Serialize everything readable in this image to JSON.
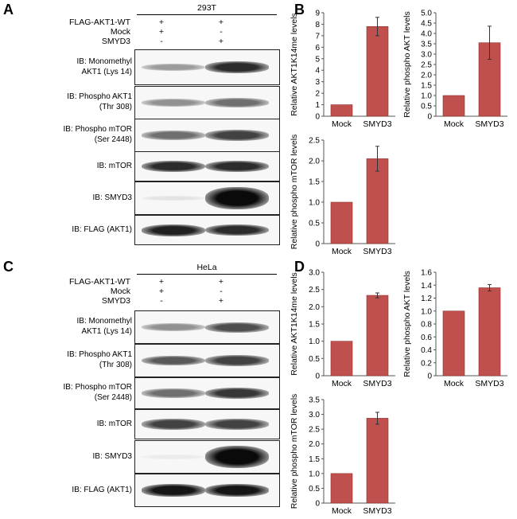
{
  "figure": {
    "panels": {
      "A": {
        "letter": "A",
        "cell_line": "293T",
        "conditions": [
          {
            "label": "FLAG-AKT1-WT",
            "lane1": "+",
            "lane2": "+"
          },
          {
            "label": "Mock",
            "lane1": "+",
            "lane2": "-"
          },
          {
            "label": "SMYD3",
            "lane1": "-",
            "lane2": "+"
          }
        ],
        "blots": [
          {
            "lines": [
              "IB: Monomethyl",
              "AKT1 (Lys 14)"
            ],
            "intensity": [
              0.35,
              0.85
            ]
          },
          {
            "lines": [
              "IB: Phospho AKT1",
              "(Thr 308)"
            ],
            "intensity": [
              0.4,
              0.55
            ]
          },
          {
            "lines": [
              "IB: Phospho mTOR",
              "(Ser 2448)"
            ],
            "intensity": [
              0.55,
              0.75
            ]
          },
          {
            "lines": [
              "IB: mTOR"
            ],
            "intensity": [
              0.85,
              0.85
            ]
          },
          {
            "lines": [
              "IB: SMYD3"
            ],
            "intensity": [
              0.03,
              1.0
            ]
          },
          {
            "lines": [
              "IB: FLAG (AKT1)"
            ],
            "intensity": [
              0.9,
              0.85
            ]
          }
        ]
      },
      "C": {
        "letter": "C",
        "cell_line": "HeLa",
        "conditions": [
          {
            "label": "FLAG-AKT1-WT",
            "lane1": "+",
            "lane2": "+"
          },
          {
            "label": "Mock",
            "lane1": "+",
            "lane2": "-"
          },
          {
            "label": "SMYD3",
            "lane1": "-",
            "lane2": "+"
          }
        ],
        "blots": [
          {
            "lines": [
              "IB: Monomethyl",
              "AKT1 (Lys 14)"
            ],
            "intensity": [
              0.4,
              0.7
            ]
          },
          {
            "lines": [
              "IB: Phospho AKT1",
              "(Thr 308)"
            ],
            "intensity": [
              0.65,
              0.75
            ]
          },
          {
            "lines": [
              "IB: Phospho mTOR",
              "(Ser 2448)"
            ],
            "intensity": [
              0.55,
              0.8
            ]
          },
          {
            "lines": [
              "IB: mTOR"
            ],
            "intensity": [
              0.75,
              0.75
            ]
          },
          {
            "lines": [
              "IB: SMYD3"
            ],
            "intensity": [
              0.0,
              1.0
            ]
          },
          {
            "lines": [
              "IB: FLAG (AKT1)"
            ],
            "intensity": [
              0.95,
              0.95
            ]
          }
        ]
      },
      "B": {
        "letter": "B"
      },
      "D": {
        "letter": "D"
      }
    },
    "bar_color": "#c0504d"
  },
  "chart_data": [
    {
      "panel": "B",
      "type": "bar",
      "categories": [
        "Mock",
        "SMYD3"
      ],
      "values": [
        1,
        7.8
      ],
      "errors": [
        0,
        0.8
      ],
      "ylabel": "Relative AKT1K14me levels",
      "ylim": [
        0,
        9
      ],
      "yticks": [
        "0",
        "1",
        "2",
        "3",
        "4",
        "5",
        "6",
        "7",
        "8",
        "9"
      ],
      "grid": false
    },
    {
      "panel": "B",
      "type": "bar",
      "categories": [
        "Mock",
        "SMYD3"
      ],
      "values": [
        1,
        3.55
      ],
      "errors": [
        0,
        0.8
      ],
      "ylabel": "Relative phospho AKT levels",
      "ylim": [
        0,
        5
      ],
      "yticks": [
        "0",
        "0.5",
        "1.0",
        "1.5",
        "2.0",
        "2.5",
        "3.0",
        "3.5",
        "4.0",
        "4.5",
        "5.0"
      ],
      "grid": false
    },
    {
      "panel": "B",
      "type": "bar",
      "categories": [
        "Mock",
        "SMYD3"
      ],
      "values": [
        1,
        2.05
      ],
      "errors": [
        0,
        0.3
      ],
      "ylabel": "Relative phospho mTOR levels",
      "ylim": [
        0,
        2.5
      ],
      "yticks": [
        "0",
        "0.5",
        "1.0",
        "1.5",
        "2.0",
        "2.5"
      ],
      "grid": false
    },
    {
      "panel": "D",
      "type": "bar",
      "categories": [
        "Mock",
        "SMYD3"
      ],
      "values": [
        1,
        2.33
      ],
      "errors": [
        0,
        0.07
      ],
      "ylabel": "Relative AKT1K14me levels",
      "ylim": [
        0,
        3
      ],
      "yticks": [
        "0",
        "0.5",
        "1.0",
        "1.5",
        "2.0",
        "2.5",
        "3.0"
      ],
      "grid": false
    },
    {
      "panel": "D",
      "type": "bar",
      "categories": [
        "Mock",
        "SMYD3"
      ],
      "values": [
        1,
        1.36
      ],
      "errors": [
        0,
        0.05
      ],
      "ylabel": "Relative phospho AKT levels",
      "ylim": [
        0,
        1.6
      ],
      "yticks": [
        "0",
        "0.2",
        "0.4",
        "0.6",
        "0.8",
        "1.0",
        "1.2",
        "1.4",
        "1.6"
      ],
      "grid": false
    },
    {
      "panel": "D",
      "type": "bar",
      "categories": [
        "Mock",
        "SMYD3"
      ],
      "values": [
        1,
        2.87
      ],
      "errors": [
        0,
        0.2
      ],
      "ylabel": "Relative phospho mTOR levels",
      "ylim": [
        0,
        3.5
      ],
      "yticks": [
        "0",
        "0.5",
        "1.0",
        "1.5",
        "2.0",
        "2.5",
        "3.0",
        "3.5"
      ],
      "grid": false
    }
  ]
}
